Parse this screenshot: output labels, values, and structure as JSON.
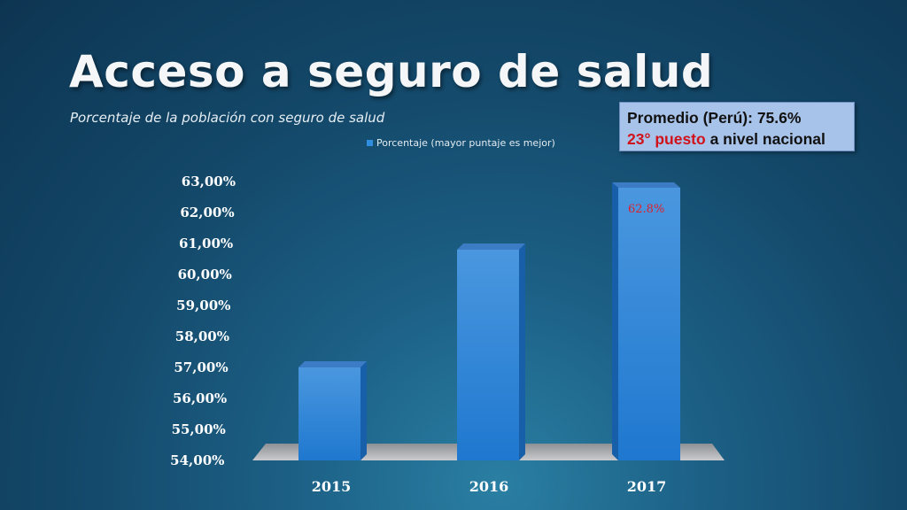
{
  "slide": {
    "title": "Acceso a seguro de salud",
    "subtitle": "Porcentaje de la población con seguro de salud"
  },
  "infobox": {
    "line1": "Promedio (Perú): 75.6%",
    "rank_red": "23° puesto",
    "rank_rest": " a nivel nacional"
  },
  "chart_data": {
    "type": "bar",
    "title": "",
    "xlabel": "",
    "ylabel": "",
    "categories": [
      "2015",
      "2016",
      "2017"
    ],
    "series": [
      {
        "name": "Porcentaje (mayor puntaje es mejor)",
        "values": [
          57.0,
          60.8,
          62.8
        ]
      }
    ],
    "ylim": [
      54,
      63
    ],
    "yticks": [
      "54,00%",
      "55,00%",
      "56,00%",
      "57,00%",
      "58,00%",
      "59,00%",
      "60,00%",
      "61,00%",
      "62,00%",
      "63,00%"
    ],
    "data_labels": [
      "",
      "",
      "62.8%"
    ],
    "legend_position": "top-center",
    "grid": false,
    "style": "3d-columns",
    "colors": {
      "bar": "#2c86d6",
      "data_label": "#e0202a"
    }
  }
}
